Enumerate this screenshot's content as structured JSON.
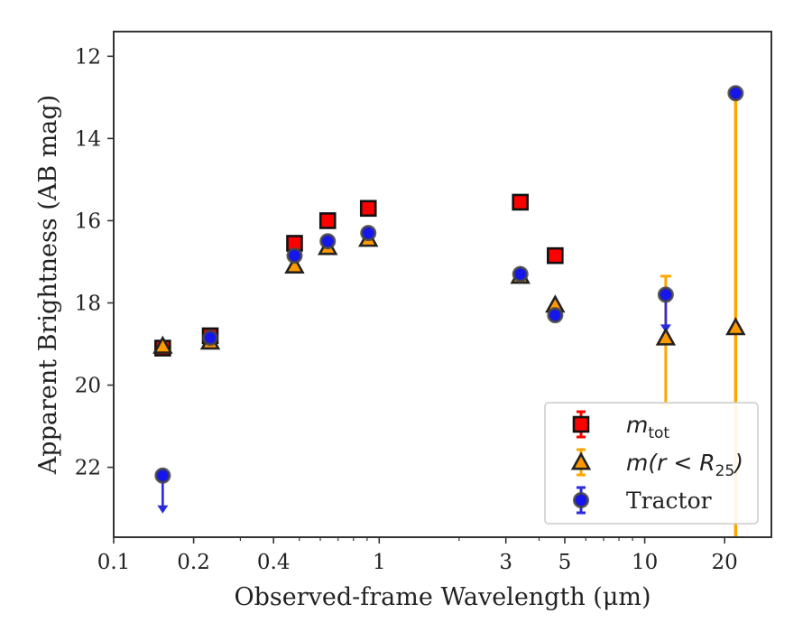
{
  "chart_data": {
    "type": "scatter",
    "xlabel": "Observed-frame Wavelength (μm)",
    "ylabel": "Apparent Brightness (AB mag)",
    "x_scale": "log",
    "xlim": [
      0.1,
      30
    ],
    "ylim": [
      23.7,
      11.4
    ],
    "y_inverted": true,
    "xticks": [
      0.1,
      0.2,
      0.4,
      1,
      3,
      5,
      10,
      20
    ],
    "xtick_labels": [
      "0.1",
      "0.2",
      "0.4",
      "1",
      "3",
      "5",
      "10",
      "20"
    ],
    "yticks": [
      12,
      14,
      16,
      18,
      20,
      22
    ],
    "ytick_labels": [
      "12",
      "14",
      "16",
      "18",
      "20",
      "22"
    ],
    "legend_position": "lower-right",
    "grid": false,
    "series": [
      {
        "name": "m_tot",
        "legend_main": "m",
        "legend_sub": "tot",
        "marker": "square",
        "color": "#ff0000",
        "edge": "#111111",
        "errcolor": "#ff0000",
        "x": [
          0.153,
          0.231,
          0.48,
          0.64,
          0.91,
          3.4,
          4.6
        ],
        "y": [
          19.1,
          18.8,
          16.55,
          16.0,
          15.7,
          15.55,
          16.85
        ]
      },
      {
        "name": "m(r < R25)",
        "legend_main": "m(r < R",
        "legend_sub": "25",
        "legend_tail": ")",
        "marker": "triangle",
        "color": "#ff9900",
        "edge": "#222222",
        "errcolor": "#ffa500",
        "x": [
          0.153,
          0.231,
          0.48,
          0.64,
          0.91,
          3.4,
          4.6,
          12.0,
          22.0
        ],
        "y": [
          19.05,
          18.95,
          17.1,
          16.65,
          16.45,
          17.35,
          18.05,
          18.85,
          18.6
        ],
        "err_lo": [
          0,
          0,
          0,
          0,
          0,
          0,
          0,
          1.5,
          0
        ],
        "err_hi": [
          0,
          0,
          0,
          0,
          0,
          0,
          0,
          1.6,
          0
        ]
      },
      {
        "name": "Tractor",
        "legend_main": "Tractor",
        "marker": "circle",
        "color": "#1515ee",
        "edge": "#444444",
        "errcolor": "#2a2ae0",
        "x": [
          0.153,
          0.231,
          0.48,
          0.64,
          0.91,
          3.4,
          4.6,
          12.0,
          22.0
        ],
        "y": [
          22.2,
          18.85,
          16.85,
          16.5,
          16.3,
          17.3,
          18.3,
          17.8,
          12.9
        ],
        "upper_limit": [
          true,
          false,
          false,
          false,
          false,
          false,
          false,
          true,
          false
        ],
        "orange_err_lo": [
          0,
          0,
          0,
          0,
          0,
          0,
          0,
          0,
          0
        ],
        "orange_err_hi": [
          0,
          0,
          0,
          0,
          0,
          0,
          0,
          0,
          10.9
        ]
      }
    ]
  }
}
